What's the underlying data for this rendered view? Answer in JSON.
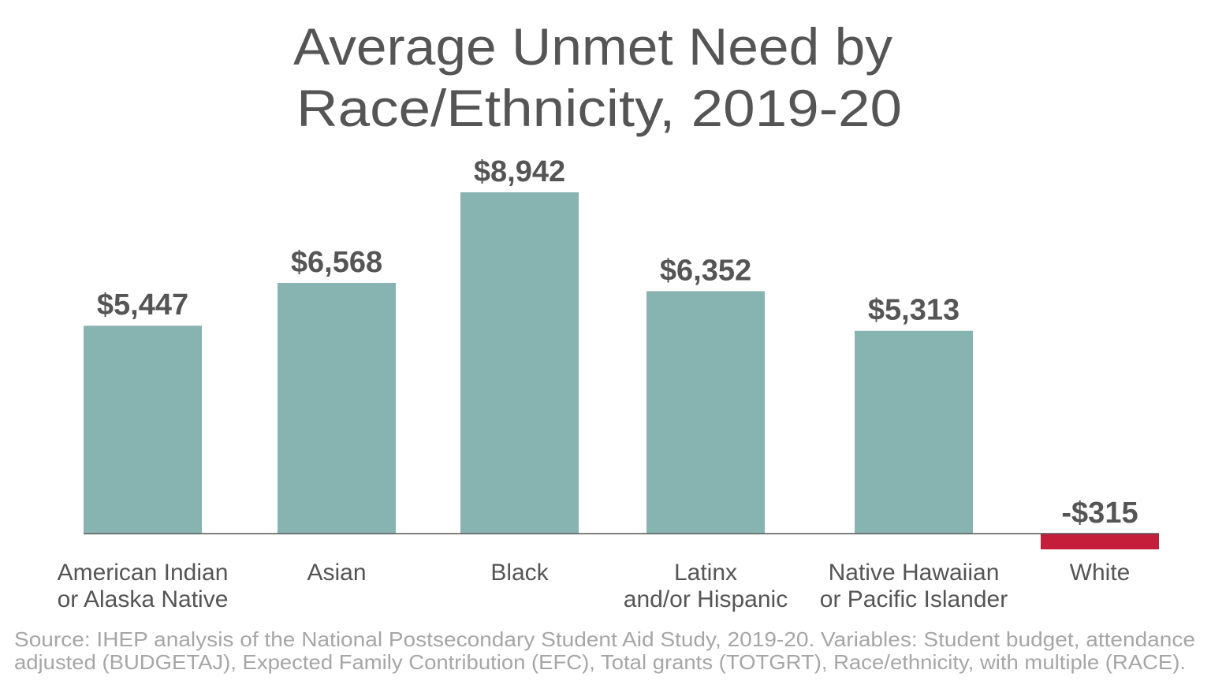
{
  "chart_data": {
    "type": "bar",
    "title": [
      "Average Unmet Need by",
      "Race/Ethnicity, 2019-20"
    ],
    "categories": [
      [
        "American Indian",
        "or Alaska Native"
      ],
      [
        "Asian"
      ],
      [
        "Black"
      ],
      [
        "Latinx",
        "and/or Hispanic"
      ],
      [
        "Native Hawaiian",
        "or Pacific Islander"
      ],
      [
        "White"
      ]
    ],
    "values": [
      5447,
      6568,
      8942,
      6352,
      5313,
      -315
    ],
    "data_labels": [
      "$5,447",
      "$6,568",
      "$8,942",
      "$6,352",
      "$5,313",
      "-$315"
    ],
    "xlabel": "",
    "ylabel": "",
    "grid": false,
    "legend": "none",
    "colors": {
      "positive": "#87b3b0",
      "negative": "#c41e3a",
      "text": "#555555",
      "source": "#a6a6a6",
      "axis": "#555555"
    },
    "source": [
      "Source: IHEP analysis of the National Postsecondary Student Aid Study, 2019-20. Variables: Student budget, attendance",
      "adjusted (BUDGETAJ), Expected Family Contribution (EFC), Total grants (TOTGRT), Race/ethnicity, with multiple (RACE)."
    ]
  }
}
